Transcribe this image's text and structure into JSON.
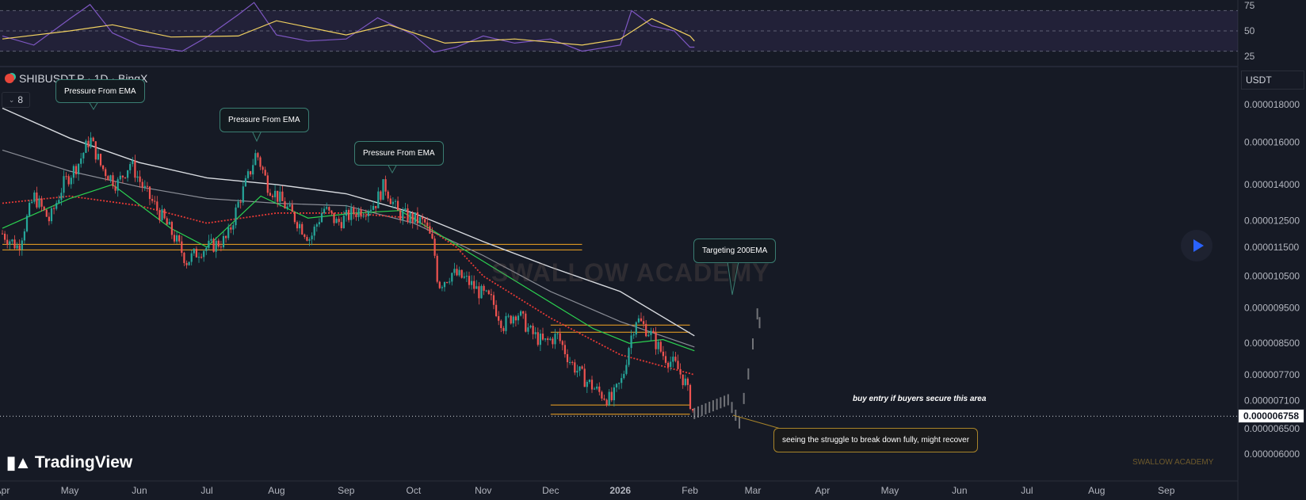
{
  "symbol": {
    "name": "SHIBUSDT.P · 1D · BingX",
    "interval": "8",
    "currency": "USDT"
  },
  "last_price": "0.000006758",
  "brand": {
    "logo_text": "TradingView",
    "watermark": "SWALLOW ACADEMY",
    "signature": "SWALLOW ACADEMY"
  },
  "colors": {
    "background": "#161a25",
    "bull": "#26a69a",
    "bear": "#ef5350",
    "ema200": "#d8dbe0",
    "ema_red": "#e53935",
    "ema_green": "#2bd150",
    "level": "#f5a623",
    "rsi": "#7e57c2",
    "rsi_ma": "#f0d060",
    "play": "#2962ff"
  },
  "annotations": {
    "pressure_1": "Pressure From EMA",
    "pressure_2": "Pressure From EMA",
    "pressure_3": "Pressure From EMA",
    "target": "Targeting 200EMA",
    "buy_entry": "buy entry if buyers secure this area",
    "struggle": "seeing the struggle to break down fully, might recover"
  },
  "chart_data": [
    {
      "type": "line",
      "title": "",
      "yticks": [
        25,
        50,
        75
      ],
      "ylim": [
        20,
        80
      ],
      "band": [
        30,
        70
      ],
      "series": [
        {
          "role": "oscillator",
          "x": [
            "2025-04-01",
            "2025-04-15",
            "2025-05-01",
            "2025-05-10",
            "2025-05-20",
            "2025-06-01",
            "2025-06-20",
            "2025-07-01",
            "2025-07-15",
            "2025-07-22",
            "2025-08-01",
            "2025-08-15",
            "2025-09-01",
            "2025-09-15",
            "2025-10-01",
            "2025-10-10",
            "2025-10-20",
            "2025-11-01",
            "2025-11-15",
            "2025-12-01",
            "2025-12-15",
            "2026-01-01",
            "2026-01-06",
            "2026-01-15",
            "2026-01-25",
            "2026-02-01",
            "2026-02-03"
          ],
          "values": [
            45,
            36,
            62,
            76,
            48,
            36,
            30,
            44,
            66,
            78,
            46,
            40,
            42,
            63,
            46,
            29,
            34,
            45,
            38,
            42,
            30,
            36,
            70,
            55,
            50,
            34,
            34
          ]
        },
        {
          "role": "oscillator_ma",
          "x": [
            "2025-04-01",
            "2025-05-01",
            "2025-05-20",
            "2025-06-15",
            "2025-07-15",
            "2025-08-01",
            "2025-09-01",
            "2025-09-20",
            "2025-10-15",
            "2025-11-15",
            "2025-12-15",
            "2026-01-01",
            "2026-01-15",
            "2026-02-01",
            "2026-02-03"
          ],
          "values": [
            42,
            50,
            56,
            44,
            45,
            60,
            46,
            56,
            38,
            42,
            36,
            42,
            62,
            45,
            40
          ]
        }
      ]
    },
    {
      "type": "candlestick",
      "title": "",
      "yscale": "log",
      "yticks": [
        1.8e-05,
        1.6e-05,
        1.4e-05,
        1.25e-05,
        1.15e-05,
        1.05e-05,
        9.5e-06,
        8.5e-06,
        7.7e-06,
        7.1e-06,
        6.5e-06,
        6e-06
      ],
      "ytick_labels": [
        "0.000018000",
        "0.000016000",
        "0.000014000",
        "0.000012500",
        "0.000011500",
        "0.000010500",
        "0.000009500",
        "0.000008500",
        "0.000007700",
        "0.000007100",
        "0.000006500",
        "0.000006000"
      ],
      "ylim": [
        5.8e-06,
        1.95e-05
      ],
      "xticks": [
        {
          "label": "Apr",
          "date": "2025-04-01"
        },
        {
          "label": "May",
          "date": "2025-05-01"
        },
        {
          "label": "Jun",
          "date": "2025-06-01"
        },
        {
          "label": "Jul",
          "date": "2025-07-01"
        },
        {
          "label": "Aug",
          "date": "2025-08-01"
        },
        {
          "label": "Sep",
          "date": "2025-09-01"
        },
        {
          "label": "Oct",
          "date": "2025-10-01"
        },
        {
          "label": "Nov",
          "date": "2025-11-01"
        },
        {
          "label": "Dec",
          "date": "2025-12-01"
        },
        {
          "label": "2026",
          "date": "2026-01-01"
        },
        {
          "label": "Feb",
          "date": "2026-02-01"
        },
        {
          "label": "Mar",
          "date": "2026-03-01"
        },
        {
          "label": "Apr",
          "date": "2026-04-01"
        },
        {
          "label": "May",
          "date": "2026-05-01"
        },
        {
          "label": "Jun",
          "date": "2026-06-01"
        },
        {
          "label": "Jul",
          "date": "2026-07-01"
        },
        {
          "label": "Aug",
          "date": "2026-08-01"
        },
        {
          "label": "Sep",
          "date": "2026-09-01"
        }
      ],
      "series": [
        {
          "role": "price_close",
          "x": [
            "2025-04-01",
            "2025-04-08",
            "2025-04-15",
            "2025-04-22",
            "2025-04-28",
            "2025-05-05",
            "2025-05-10",
            "2025-05-15",
            "2025-05-22",
            "2025-05-28",
            "2025-06-03",
            "2025-06-10",
            "2025-06-17",
            "2025-06-22",
            "2025-06-28",
            "2025-07-05",
            "2025-07-10",
            "2025-07-15",
            "2025-07-20",
            "2025-07-23",
            "2025-07-28",
            "2025-08-04",
            "2025-08-10",
            "2025-08-16",
            "2025-08-22",
            "2025-08-28",
            "2025-09-04",
            "2025-09-10",
            "2025-09-14",
            "2025-09-18",
            "2025-09-24",
            "2025-09-30",
            "2025-10-06",
            "2025-10-10",
            "2025-10-12",
            "2025-10-18",
            "2025-10-24",
            "2025-10-30",
            "2025-11-05",
            "2025-11-10",
            "2025-11-16",
            "2025-11-22",
            "2025-11-28",
            "2025-12-04",
            "2025-12-10",
            "2025-12-16",
            "2025-12-22",
            "2025-12-28",
            "2026-01-02",
            "2026-01-05",
            "2026-01-08",
            "2026-01-14",
            "2026-01-20",
            "2026-01-26",
            "2026-01-30",
            "2026-02-02",
            "2026-02-03"
          ],
          "values": [
            1.2e-05,
            1.15e-05,
            1.35e-05,
            1.25e-05,
            1.4e-05,
            1.5e-05,
            1.62e-05,
            1.48e-05,
            1.4e-05,
            1.5e-05,
            1.38e-05,
            1.28e-05,
            1.18e-05,
            1.1e-05,
            1.14e-05,
            1.16e-05,
            1.18e-05,
            1.32e-05,
            1.45e-05,
            1.55e-05,
            1.4e-05,
            1.32e-05,
            1.25e-05,
            1.18e-05,
            1.3e-05,
            1.24e-05,
            1.28e-05,
            1.3e-05,
            1.32e-05,
            1.4e-05,
            1.28e-05,
            1.26e-05,
            1.24e-05,
            1.15e-05,
            1.02e-05,
            1.06e-05,
            1.04e-05,
            1e-05,
            9.7e-06,
            9e-06,
            9.4e-06,
            8.8e-06,
            8.5e-06,
            8.7e-06,
            8e-06,
            7.6e-06,
            7.3e-06,
            7.1e-06,
            7.6e-06,
            8.5e-06,
            9.2e-06,
            8.8e-06,
            8.2e-06,
            7.9e-06,
            7.5e-06,
            6.9e-06,
            6.8e-06
          ]
        },
        {
          "role": "ema_200",
          "x": [
            "2025-04-01",
            "2025-05-01",
            "2025-06-01",
            "2025-07-01",
            "2025-08-01",
            "2025-09-01",
            "2025-10-01",
            "2025-11-01",
            "2025-12-01",
            "2026-01-01",
            "2026-02-03"
          ],
          "values": [
            1.78e-05,
            1.62e-05,
            1.5e-05,
            1.43e-05,
            1.4e-05,
            1.36e-05,
            1.28e-05,
            1.17e-05,
            1.08e-05,
            1e-05,
            8.7e-06
          ]
        },
        {
          "role": "ema_100",
          "x": [
            "2025-04-01",
            "2025-05-01",
            "2025-06-01",
            "2025-07-01",
            "2025-08-01",
            "2025-09-01",
            "2025-10-01",
            "2025-11-01",
            "2025-12-01",
            "2026-01-01",
            "2026-02-03"
          ],
          "values": [
            1.56e-05,
            1.46e-05,
            1.39e-05,
            1.34e-05,
            1.32e-05,
            1.31e-05,
            1.24e-05,
            1.12e-05,
            1e-05,
            9.1e-06,
            8.4e-06
          ]
        },
        {
          "role": "ema_50",
          "x": [
            "2025-04-01",
            "2025-05-01",
            "2025-06-01",
            "2025-07-01",
            "2025-08-01",
            "2025-09-01",
            "2025-10-01",
            "2025-10-20",
            "2025-11-01",
            "2025-12-01",
            "2026-01-01",
            "2026-02-03"
          ],
          "values": [
            1.32e-05,
            1.35e-05,
            1.31e-05,
            1.24e-05,
            1.28e-05,
            1.28e-05,
            1.26e-05,
            1.15e-05,
            1.05e-05,
            9.2e-06,
            8.2e-06,
            7.7e-06
          ]
        },
        {
          "role": "ema_20",
          "x": [
            "2025-04-01",
            "2025-05-01",
            "2025-05-20",
            "2025-06-15",
            "2025-07-01",
            "2025-07-25",
            "2025-08-15",
            "2025-09-05",
            "2025-09-25",
            "2025-12-20",
            "2026-01-05",
            "2026-01-20",
            "2026-02-03"
          ],
          "values": [
            1.22e-05,
            1.34e-05,
            1.4e-05,
            1.22e-05,
            1.15e-05,
            1.35e-05,
            1.26e-05,
            1.28e-05,
            1.29e-05,
            8.9e-06,
            8.5e-06,
            8.6e-06,
            8.3e-06
          ]
        },
        {
          "role": "projection",
          "x": [
            "2026-02-03",
            "2026-02-08",
            "2026-02-13",
            "2026-02-18",
            "2026-02-23",
            "2026-02-27",
            "2026-03-03",
            "2026-03-05"
          ],
          "values": [
            6.8e-06,
            6.9e-06,
            7e-06,
            7.1e-06,
            6.6e-06,
            7.7e-06,
            9.3e-06,
            8.8e-06
          ]
        }
      ],
      "levels": [
        {
          "value": 1.16e-05,
          "from": "2025-04-01",
          "to": "2025-12-15"
        },
        {
          "value": 1.14e-05,
          "from": "2025-04-01",
          "to": "2025-12-15"
        },
        {
          "value": 9e-06,
          "from": "2025-12-01",
          "to": "2026-02-01"
        },
        {
          "value": 8.8e-06,
          "from": "2025-12-01",
          "to": "2026-02-01"
        },
        {
          "value": 7e-06,
          "from": "2025-12-01",
          "to": "2026-02-01"
        },
        {
          "value": 6.8e-06,
          "from": "2025-12-01",
          "to": "2026-02-01"
        }
      ]
    }
  ]
}
